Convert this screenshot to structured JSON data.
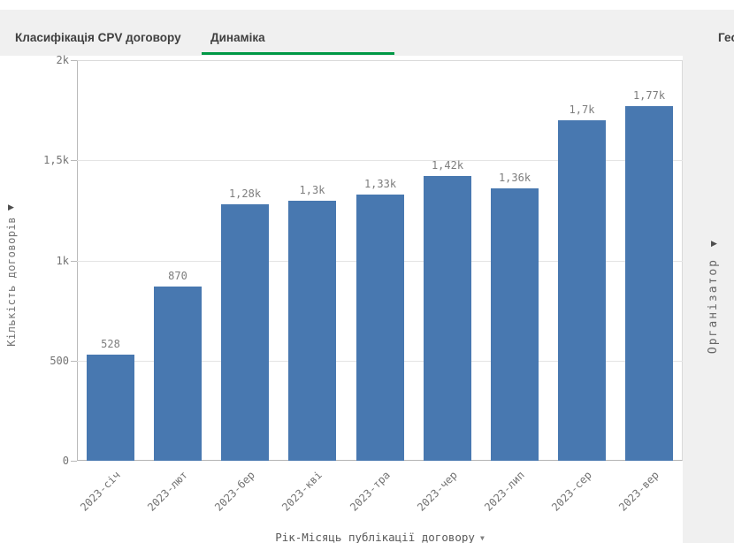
{
  "colors": {
    "bar": "#4878b0",
    "accent_green": "#009845",
    "background_gray": "#f0f0f0",
    "panel_white": "#ffffff",
    "tab_text": "#404040",
    "axis_text": "#737373"
  },
  "tabs": {
    "items": [
      {
        "label": "Класифікація CPV договору",
        "active": false
      },
      {
        "label": "Динаміка",
        "active": true
      }
    ],
    "truncated_right_tab_label": "Гео"
  },
  "right_panel": {
    "axis_label": "Організатор",
    "expand_arrow": "▶"
  },
  "chart_data": {
    "type": "bar",
    "title": "",
    "categories": [
      "2023-січ",
      "2023-лют",
      "2023-бер",
      "2023-кві",
      "2023-тра",
      "2023-чер",
      "2023-лип",
      "2023-сер",
      "2023-вер"
    ],
    "values": [
      528,
      870,
      1280,
      1300,
      1330,
      1420,
      1360,
      1700,
      1770
    ],
    "value_labels": [
      "528",
      "870",
      "1,28k",
      "1,3k",
      "1,33k",
      "1,42k",
      "1,36k",
      "1,7k",
      "1,77k"
    ],
    "xlabel": "Рік-Місяць публікації договору",
    "ylabel": "Кількість договорів",
    "ylim": [
      0,
      2000
    ],
    "y_ticks": [
      {
        "value": 0,
        "label": "0"
      },
      {
        "value": 500,
        "label": "500"
      },
      {
        "value": 1000,
        "label": "1k"
      },
      {
        "value": 1500,
        "label": "1,5k"
      },
      {
        "value": 2000,
        "label": "2k"
      }
    ],
    "grid": true,
    "legend": false,
    "expand_arrow": "▶",
    "xlabel_dropdown_glyph": "▼"
  }
}
